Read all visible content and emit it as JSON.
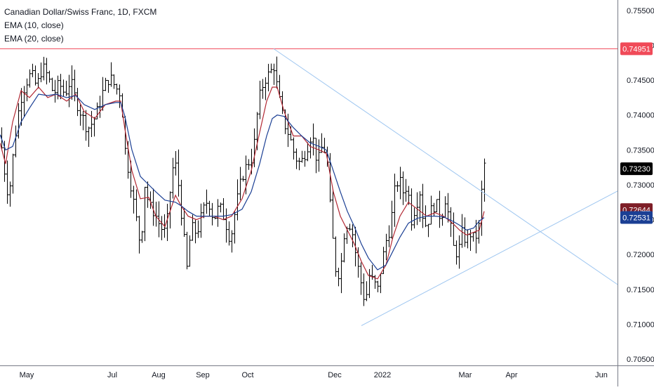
{
  "legend": {
    "title": "Canadian Dollar/Swiss Franc, 1D, FXCM",
    "ema_fast": "EMA (10, close)",
    "ema_slow": "EMA (20, close)"
  },
  "colors": {
    "background": "#ffffff",
    "bar": "#000000",
    "ema_fast": "#b22833",
    "ema_slow": "#1b3f94",
    "trendline": "#9ec6f0",
    "resistance": "#f04a58",
    "axis_text": "#131722"
  },
  "chart_data": {
    "type": "ohlc",
    "symbol": "Canadian Dollar/Swiss Franc",
    "timeframe": "1D",
    "source": "FXCM",
    "y_ticks": [
      "0.75500",
      "0.75000",
      "0.74500",
      "0.74000",
      "0.73500",
      "0.73000",
      "0.72500",
      "0.72000",
      "0.71500",
      "0.71000",
      "0.70500"
    ],
    "ylim": [
      0.7041,
      0.7565
    ],
    "x_labels": [
      "May",
      "Jul",
      "Aug",
      "Sep",
      "Oct",
      "Dec",
      "2022",
      "Mar",
      "Apr",
      "Jun"
    ],
    "price_labels": [
      {
        "id": "resistance",
        "text": "0.74951",
        "value": 0.74951,
        "color": "#f04a58"
      },
      {
        "id": "last-price",
        "text": "0.73230",
        "value": 0.7323,
        "color": "#000000"
      },
      {
        "id": "ema-fast",
        "text": "0.72644",
        "value": 0.72644,
        "color": "#7e1e27"
      },
      {
        "id": "ema-slow",
        "text": "0.72531",
        "value": 0.72531,
        "color": "#1b3f94"
      }
    ],
    "resistance_level": 0.74951,
    "trendlines": [
      {
        "name": "descending",
        "from": [
          "2021-10-14",
          0.74951
        ],
        "to": [
          "2022-06-20",
          0.7157
        ]
      },
      {
        "name": "ascending",
        "from": [
          "2021-12-20",
          0.7098
        ],
        "to": [
          "2022-06-20",
          0.7291
        ]
      }
    ],
    "series": [
      {
        "name": "EMA (10, close)",
        "type": "line",
        "points": [
          [
            0,
            0.736
          ],
          [
            8,
            0.733
          ],
          [
            18,
            0.739
          ],
          [
            30,
            0.7435
          ],
          [
            42,
            0.7425
          ],
          [
            55,
            0.744
          ],
          [
            68,
            0.7425
          ],
          [
            80,
            0.743
          ],
          [
            95,
            0.742
          ],
          [
            108,
            0.743
          ],
          [
            120,
            0.7405
          ],
          [
            135,
            0.7395
          ],
          [
            150,
            0.7415
          ],
          [
            165,
            0.742
          ],
          [
            172,
            0.742
          ],
          [
            178,
            0.738
          ],
          [
            188,
            0.732
          ],
          [
            200,
            0.728
          ],
          [
            212,
            0.7282
          ],
          [
            222,
            0.7255
          ],
          [
            235,
            0.724
          ],
          [
            250,
            0.7285
          ],
          [
            258,
            0.727
          ],
          [
            268,
            0.7255
          ],
          [
            280,
            0.725
          ],
          [
            292,
            0.7255
          ],
          [
            305,
            0.7255
          ],
          [
            318,
            0.725
          ],
          [
            330,
            0.7255
          ],
          [
            345,
            0.728
          ],
          [
            358,
            0.732
          ],
          [
            370,
            0.7375
          ],
          [
            380,
            0.742
          ],
          [
            388,
            0.744
          ],
          [
            395,
            0.744
          ],
          [
            405,
            0.7405
          ],
          [
            418,
            0.737
          ],
          [
            430,
            0.737
          ],
          [
            442,
            0.7355
          ],
          [
            455,
            0.735
          ],
          [
            465,
            0.7345
          ],
          [
            475,
            0.729
          ],
          [
            485,
            0.7255
          ],
          [
            495,
            0.7235
          ],
          [
            505,
            0.7215
          ],
          [
            515,
            0.719
          ],
          [
            525,
            0.717
          ],
          [
            538,
            0.7165
          ],
          [
            550,
            0.7185
          ],
          [
            560,
            0.7225
          ],
          [
            570,
            0.7255
          ],
          [
            582,
            0.7275
          ],
          [
            595,
            0.7265
          ],
          [
            608,
            0.7255
          ],
          [
            620,
            0.726
          ],
          [
            632,
            0.7255
          ],
          [
            645,
            0.7245
          ],
          [
            655,
            0.7235
          ],
          [
            665,
            0.7228
          ],
          [
            675,
            0.7232
          ],
          [
            683,
            0.7235
          ],
          [
            690,
            0.7262
          ]
        ]
      },
      {
        "name": "EMA (20, close)",
        "type": "line",
        "points": [
          [
            0,
            0.7372
          ],
          [
            8,
            0.735
          ],
          [
            18,
            0.7355
          ],
          [
            30,
            0.739
          ],
          [
            42,
            0.741
          ],
          [
            55,
            0.743
          ],
          [
            68,
            0.7428
          ],
          [
            80,
            0.743
          ],
          [
            95,
            0.7425
          ],
          [
            108,
            0.7428
          ],
          [
            120,
            0.7415
          ],
          [
            135,
            0.7408
          ],
          [
            150,
            0.7415
          ],
          [
            165,
            0.7418
          ],
          [
            172,
            0.7418
          ],
          [
            178,
            0.7398
          ],
          [
            188,
            0.735
          ],
          [
            200,
            0.7312
          ],
          [
            212,
            0.73
          ],
          [
            222,
            0.729
          ],
          [
            235,
            0.7278
          ],
          [
            250,
            0.7275
          ],
          [
            258,
            0.727
          ],
          [
            268,
            0.7262
          ],
          [
            280,
            0.7255
          ],
          [
            292,
            0.7255
          ],
          [
            305,
            0.7255
          ],
          [
            318,
            0.7255
          ],
          [
            330,
            0.7257
          ],
          [
            345,
            0.7265
          ],
          [
            358,
            0.729
          ],
          [
            370,
            0.733
          ],
          [
            380,
            0.737
          ],
          [
            388,
            0.7395
          ],
          [
            395,
            0.74
          ],
          [
            405,
            0.7398
          ],
          [
            418,
            0.7382
          ],
          [
            430,
            0.737
          ],
          [
            442,
            0.736
          ],
          [
            455,
            0.7355
          ],
          [
            465,
            0.735
          ],
          [
            475,
            0.732
          ],
          [
            485,
            0.729
          ],
          [
            495,
            0.7262
          ],
          [
            505,
            0.724
          ],
          [
            515,
            0.7215
          ],
          [
            525,
            0.7195
          ],
          [
            538,
            0.7178
          ],
          [
            550,
            0.7185
          ],
          [
            560,
            0.7205
          ],
          [
            570,
            0.7225
          ],
          [
            582,
            0.7245
          ],
          [
            595,
            0.7252
          ],
          [
            608,
            0.7255
          ],
          [
            620,
            0.7255
          ],
          [
            632,
            0.7254
          ],
          [
            645,
            0.7248
          ],
          [
            655,
            0.7242
          ],
          [
            665,
            0.7235
          ],
          [
            675,
            0.7238
          ],
          [
            683,
            0.7248
          ],
          [
            690,
            0.7253
          ]
        ]
      }
    ],
    "price_path": [
      [
        0,
        0.737
      ],
      [
        6,
        0.732
      ],
      [
        12,
        0.728
      ],
      [
        20,
        0.736
      ],
      [
        28,
        0.742
      ],
      [
        36,
        0.7445
      ],
      [
        44,
        0.746
      ],
      [
        52,
        0.744
      ],
      [
        60,
        0.747
      ],
      [
        68,
        0.7455
      ],
      [
        76,
        0.743
      ],
      [
        84,
        0.7445
      ],
      [
        92,
        0.743
      ],
      [
        100,
        0.745
      ],
      [
        108,
        0.742
      ],
      [
        116,
        0.74
      ],
      [
        124,
        0.738
      ],
      [
        132,
        0.739
      ],
      [
        140,
        0.741
      ],
      [
        148,
        0.744
      ],
      [
        156,
        0.7455
      ],
      [
        164,
        0.744
      ],
      [
        172,
        0.743
      ],
      [
        178,
        0.735
      ],
      [
        186,
        0.73
      ],
      [
        194,
        0.725
      ],
      [
        200,
        0.721
      ],
      [
        206,
        0.73
      ],
      [
        212,
        0.727
      ],
      [
        220,
        0.726
      ],
      [
        228,
        0.724
      ],
      [
        236,
        0.723
      ],
      [
        242,
        0.729
      ],
      [
        248,
        0.734
      ],
      [
        254,
        0.73
      ],
      [
        260,
        0.724
      ],
      [
        266,
        0.718
      ],
      [
        272,
        0.724
      ],
      [
        280,
        0.723
      ],
      [
        288,
        0.726
      ],
      [
        296,
        0.728
      ],
      [
        304,
        0.725
      ],
      [
        312,
        0.727
      ],
      [
        320,
        0.725
      ],
      [
        328,
        0.722
      ],
      [
        336,
        0.727
      ],
      [
        344,
        0.731
      ],
      [
        352,
        0.733
      ],
      [
        360,
        0.734
      ],
      [
        368,
        0.742
      ],
      [
        376,
        0.745
      ],
      [
        384,
        0.746
      ],
      [
        390,
        0.747
      ],
      [
        396,
        0.743
      ],
      [
        404,
        0.739
      ],
      [
        412,
        0.737
      ],
      [
        420,
        0.734
      ],
      [
        428,
        0.733
      ],
      [
        436,
        0.735
      ],
      [
        444,
        0.7375
      ],
      [
        452,
        0.733
      ],
      [
        460,
        0.736
      ],
      [
        466,
        0.733
      ],
      [
        472,
        0.724
      ],
      [
        478,
        0.718
      ],
      [
        484,
        0.717
      ],
      [
        490,
        0.723
      ],
      [
        496,
        0.725
      ],
      [
        502,
        0.723
      ],
      [
        508,
        0.719
      ],
      [
        514,
        0.716
      ],
      [
        520,
        0.713
      ],
      [
        526,
        0.717
      ],
      [
        532,
        0.716
      ],
      [
        538,
        0.715
      ],
      [
        544,
        0.719
      ],
      [
        550,
        0.722
      ],
      [
        556,
        0.724
      ],
      [
        562,
        0.729
      ],
      [
        568,
        0.731
      ],
      [
        574,
        0.729
      ],
      [
        580,
        0.73
      ],
      [
        586,
        0.725
      ],
      [
        592,
        0.727
      ],
      [
        598,
        0.729
      ],
      [
        604,
        0.724
      ],
      [
        610,
        0.725
      ],
      [
        616,
        0.727
      ],
      [
        622,
        0.727
      ],
      [
        628,
        0.725
      ],
      [
        634,
        0.728
      ],
      [
        640,
        0.725
      ],
      [
        646,
        0.721
      ],
      [
        652,
        0.72
      ],
      [
        658,
        0.723
      ],
      [
        664,
        0.722
      ],
      [
        670,
        0.723
      ],
      [
        676,
        0.722
      ],
      [
        682,
        0.724
      ],
      [
        686,
        0.729
      ],
      [
        690,
        0.733
      ]
    ]
  }
}
